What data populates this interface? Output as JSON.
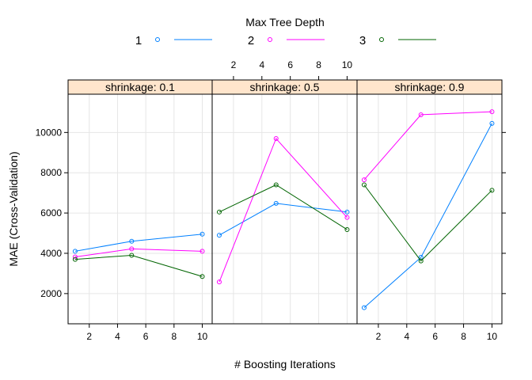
{
  "chart_data": {
    "type": "line",
    "legend": {
      "title": "Max Tree Depth",
      "placement": "top",
      "entries": [
        {
          "label": "1",
          "color": "#0080ff"
        },
        {
          "label": "2",
          "color": "#ff00ff"
        },
        {
          "label": "3",
          "color": "#006400"
        }
      ]
    },
    "xlabel": "# Boosting Iterations",
    "ylabel": "MAE (Cross-Validation)",
    "xlim": [
      0.5,
      10.7
    ],
    "ylim": [
      500,
      11900
    ],
    "xticks": [
      2,
      4,
      6,
      8,
      10
    ],
    "yticks": [
      2000,
      4000,
      6000,
      8000,
      10000
    ],
    "grid": true,
    "panels": [
      {
        "strip": "shrinkage: 0.1",
        "series": [
          {
            "name": "1",
            "x": [
              1,
              5,
              10
            ],
            "y": [
              4100,
              4600,
              4950
            ]
          },
          {
            "name": "2",
            "x": [
              1,
              5,
              10
            ],
            "y": [
              3820,
              4220,
              4100
            ]
          },
          {
            "name": "3",
            "x": [
              1,
              5,
              10
            ],
            "y": [
              3700,
              3900,
              2850
            ]
          }
        ]
      },
      {
        "strip": "shrinkage: 0.5",
        "series": [
          {
            "name": "1",
            "x": [
              1,
              5,
              10
            ],
            "y": [
              4900,
              6480,
              6050
            ]
          },
          {
            "name": "2",
            "x": [
              1,
              5,
              10
            ],
            "y": [
              2580,
              9700,
              5780
            ]
          },
          {
            "name": "3",
            "x": [
              1,
              5,
              10
            ],
            "y": [
              6050,
              7400,
              5180
            ]
          }
        ]
      },
      {
        "strip": "shrinkage: 0.9",
        "series": [
          {
            "name": "1",
            "x": [
              1,
              5,
              10
            ],
            "y": [
              1300,
              3800,
              10450
            ]
          },
          {
            "name": "2",
            "x": [
              1,
              5,
              10
            ],
            "y": [
              7650,
              10880,
              11030
            ]
          },
          {
            "name": "3",
            "x": [
              1,
              5,
              10
            ],
            "y": [
              7400,
              3620,
              7130
            ]
          }
        ]
      }
    ]
  }
}
